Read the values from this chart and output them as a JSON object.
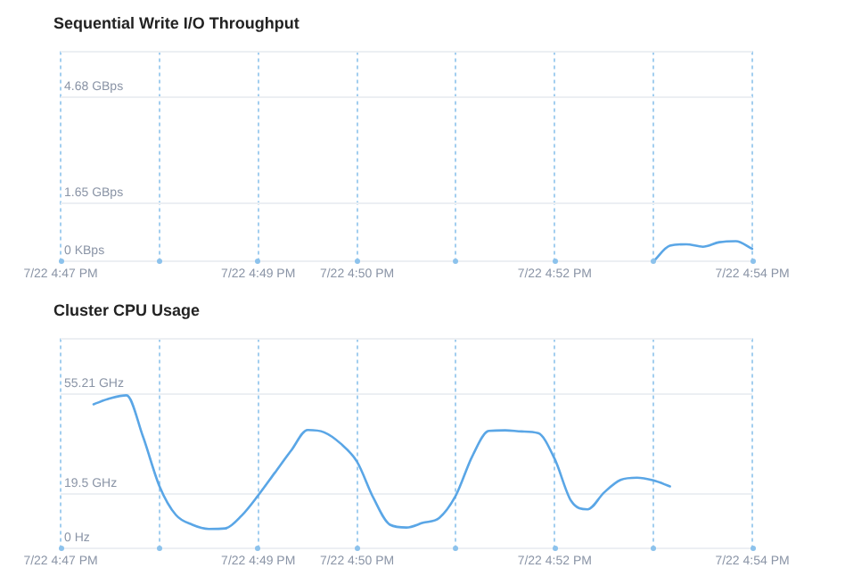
{
  "chart_data": [
    {
      "type": "line",
      "title": "Sequential Write I/O Throughput",
      "categories": [
        "7/22 4:47 PM",
        null,
        null,
        null,
        null,
        null,
        null,
        null,
        null,
        null,
        null,
        null,
        "7/22 4:49 PM",
        null,
        null,
        null,
        null,
        null,
        "7/22 4:50 PM",
        null,
        null,
        null,
        null,
        null,
        null,
        null,
        null,
        null,
        null,
        null,
        "7/22 4:52 PM",
        null,
        null,
        null,
        null,
        null,
        null,
        null,
        null,
        null,
        null,
        null,
        "7/22 4:54 PM"
      ],
      "series": [
        {
          "color": "#5aa6e6",
          "values": [
            null,
            null,
            null,
            null,
            null,
            null,
            null,
            null,
            null,
            null,
            null,
            null,
            null,
            null,
            null,
            null,
            null,
            null,
            null,
            null,
            null,
            null,
            null,
            null,
            null,
            null,
            null,
            null,
            null,
            null,
            null,
            null,
            null,
            null,
            null,
            null,
            0,
            0.45,
            0.49,
            0.42,
            0.55,
            0.58,
            0.36
          ]
        }
      ],
      "ylim": [
        0,
        6
      ],
      "yticks": [
        {
          "value": 0,
          "label": "0 KBps"
        },
        {
          "value": 1.65,
          "label": "1.65 GBps"
        },
        {
          "value": 4.68,
          "label": "4.68 GBps"
        },
        {
          "value": 6,
          "label": null
        }
      ],
      "grid": true,
      "legend": false,
      "marker": "none",
      "line_style": "solid"
    },
    {
      "type": "line",
      "title": "Cluster CPU Usage",
      "categories": [
        "7/22 4:47 PM",
        null,
        null,
        null,
        null,
        null,
        null,
        null,
        null,
        null,
        null,
        null,
        "7/22 4:49 PM",
        null,
        null,
        null,
        null,
        null,
        "7/22 4:50 PM",
        null,
        null,
        null,
        null,
        null,
        null,
        null,
        null,
        null,
        null,
        null,
        "7/22 4:52 PM",
        null,
        null,
        null,
        null,
        null,
        null,
        null,
        null,
        null,
        null,
        null,
        "7/22 4:54 PM"
      ],
      "series": [
        {
          "color": "#5aa6e6",
          "values": [
            null,
            null,
            51.5,
            53.6,
            54.7,
            40,
            22.3,
            12,
            8.5,
            7,
            7.2,
            11.8,
            19,
            27,
            35,
            42.3,
            41.5,
            37.5,
            31,
            18,
            8.5,
            7.5,
            9.2,
            11,
            19,
            33,
            42,
            42.2,
            41.8,
            41.2,
            32,
            17,
            14,
            20,
            24.5,
            25.3,
            24.3,
            22.2,
            null,
            null,
            null,
            null,
            null
          ]
        }
      ],
      "ylim": [
        0,
        75
      ],
      "yticks": [
        {
          "value": 0,
          "label": "0 Hz"
        },
        {
          "value": 19.5,
          "label": "19.5 GHz"
        },
        {
          "value": 55.21,
          "label": "55.21 GHz"
        },
        {
          "value": 75,
          "label": null
        }
      ],
      "grid": true,
      "legend": false,
      "marker": "none",
      "line_style": "solid"
    }
  ]
}
